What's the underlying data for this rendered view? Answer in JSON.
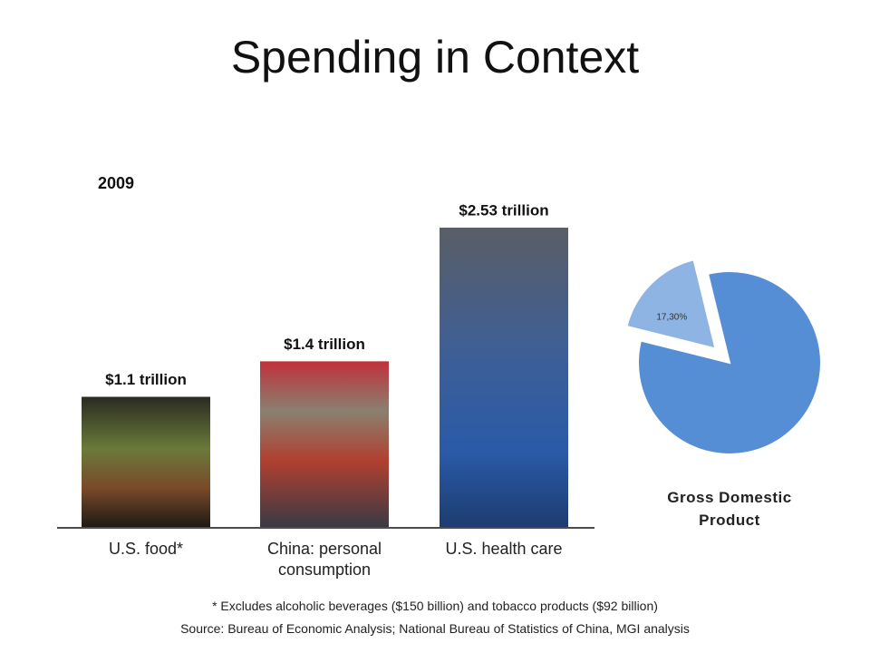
{
  "title": "Spending in Context",
  "chart_data": [
    {
      "type": "bar",
      "subtitle": "2009",
      "categories": [
        "U.S. food*",
        "China: personal consumption",
        "U.S. health care"
      ],
      "values": [
        1.1,
        1.4,
        2.53
      ],
      "value_labels": [
        "$1.1 trillion",
        "$1.4 trillion",
        "$2.53 trillion"
      ]
    },
    {
      "type": "pie",
      "title": "Gross Domestic Product",
      "values": [
        17.3,
        82.7
      ],
      "value_labels": [
        "17,30%",
        null
      ],
      "colors": [
        "#8eb4e3",
        "#558ed5"
      ]
    }
  ],
  "footnotes": [
    "* Excludes alcoholic beverages ($150 billion) and tobacco products ($92 billion)",
    "Source: Bureau of Economic Analysis; National Bureau of Statistics of China, MGI analysis"
  ]
}
